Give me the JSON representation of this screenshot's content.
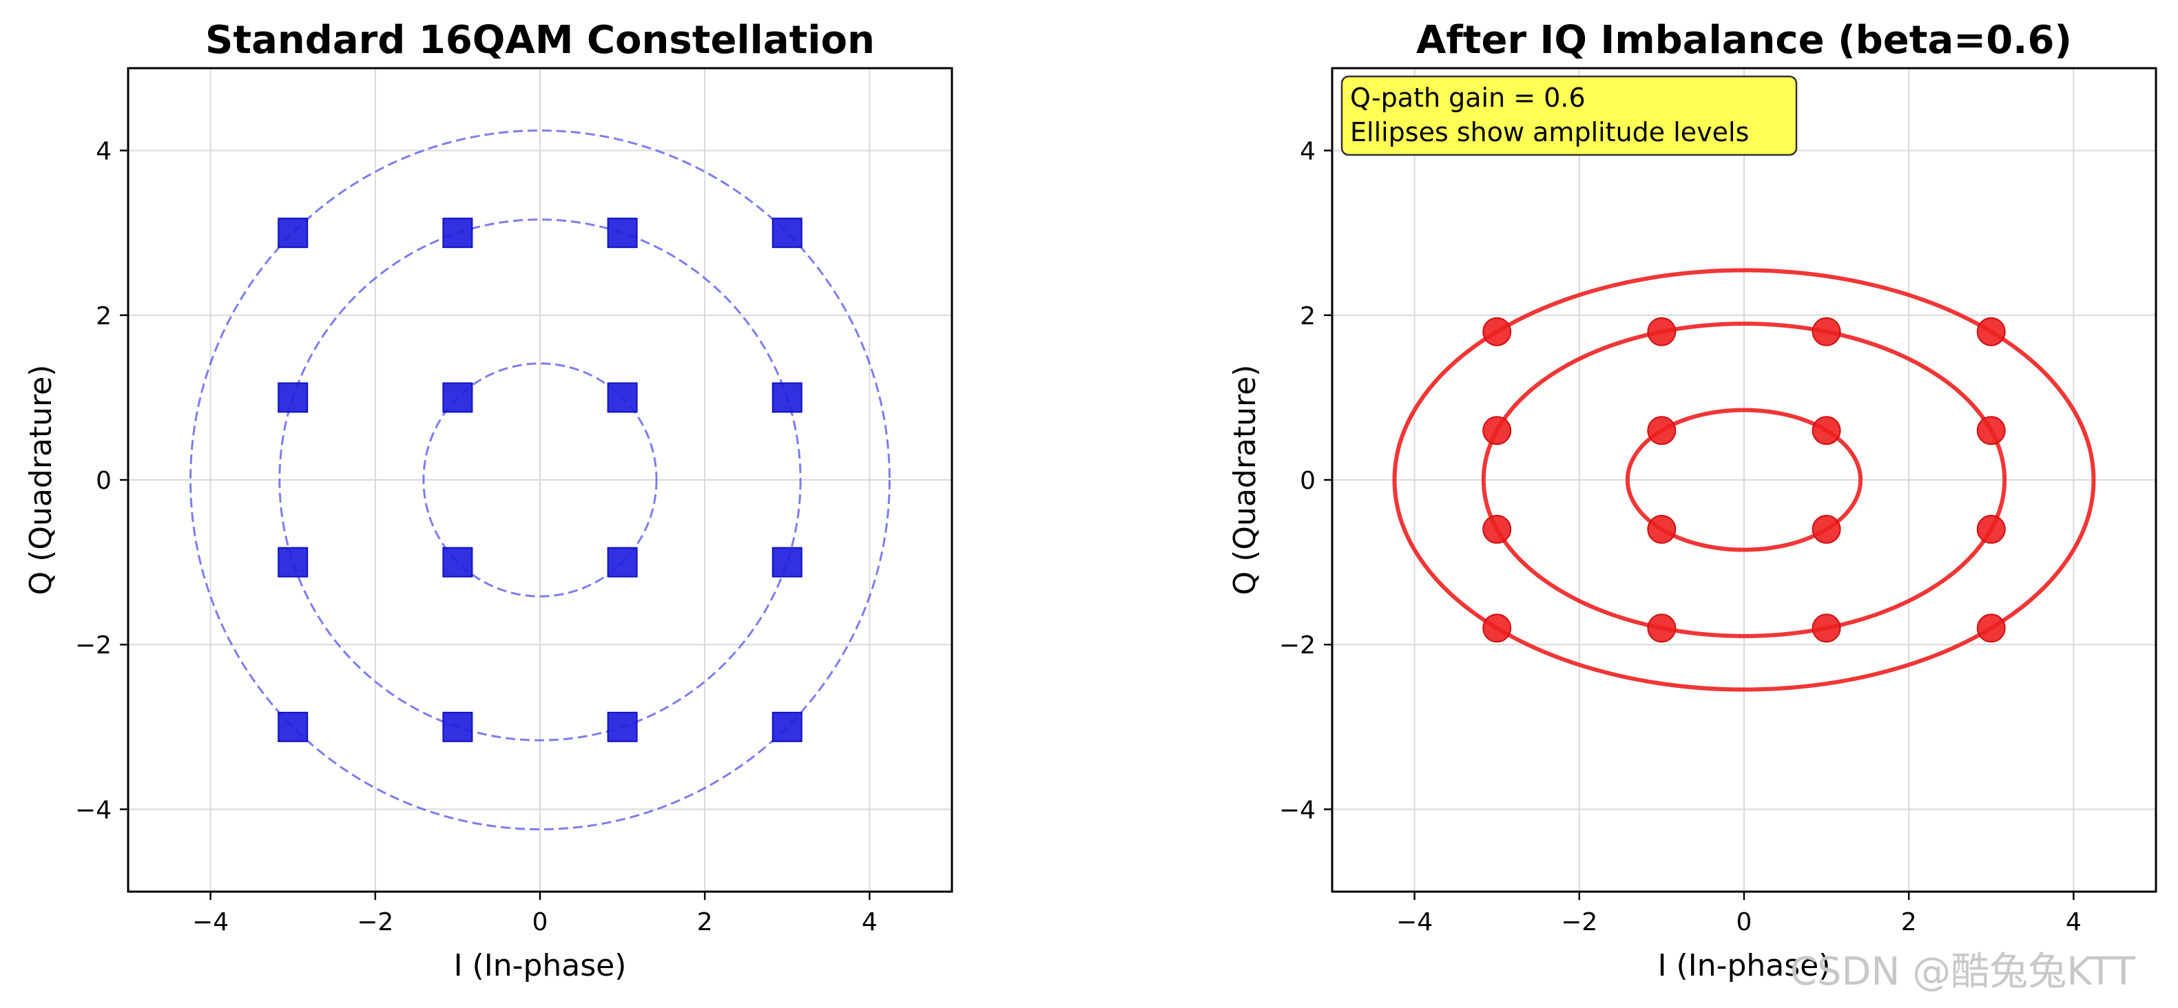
{
  "chart_data": [
    {
      "type": "scatter",
      "title": "Standard 16QAM Constellation",
      "xlabel": "I (In-phase)",
      "ylabel": "Q (Quadrature)",
      "xlim": [
        -5,
        5
      ],
      "ylim": [
        -5,
        5
      ],
      "xticks": [
        -4,
        -2,
        0,
        2,
        4
      ],
      "yticks": [
        -4,
        -2,
        0,
        2,
        4
      ],
      "grid": true,
      "marker": "square",
      "color": "#1f1fe0",
      "points": [
        [
          -3,
          3
        ],
        [
          -1,
          3
        ],
        [
          1,
          3
        ],
        [
          3,
          3
        ],
        [
          -3,
          1
        ],
        [
          -1,
          1
        ],
        [
          1,
          1
        ],
        [
          3,
          1
        ],
        [
          -3,
          -1
        ],
        [
          -1,
          -1
        ],
        [
          1,
          -1
        ],
        [
          3,
          -1
        ],
        [
          -3,
          -3
        ],
        [
          -1,
          -3
        ],
        [
          1,
          -3
        ],
        [
          3,
          -3
        ]
      ],
      "reference_curves": {
        "style": "dashed",
        "color": "#6666ee",
        "ellipses": [
          {
            "rx": 1.414,
            "ry": 1.414
          },
          {
            "rx": 3.162,
            "ry": 3.162
          },
          {
            "rx": 4.243,
            "ry": 4.243
          }
        ]
      }
    },
    {
      "type": "scatter",
      "title": "After IQ Imbalance (beta=0.6)",
      "xlabel": "I (In-phase)",
      "ylabel": "Q (Quadrature)",
      "xlim": [
        -5,
        5
      ],
      "ylim": [
        -5,
        5
      ],
      "xticks": [
        -4,
        -2,
        0,
        2,
        4
      ],
      "yticks": [
        -4,
        -2,
        0,
        2,
        4
      ],
      "grid": true,
      "marker": "circle",
      "color": "#ee2020",
      "points": [
        [
          -3,
          1.8
        ],
        [
          -1,
          1.8
        ],
        [
          1,
          1.8
        ],
        [
          3,
          1.8
        ],
        [
          -3,
          0.6
        ],
        [
          -1,
          0.6
        ],
        [
          1,
          0.6
        ],
        [
          3,
          0.6
        ],
        [
          -3,
          -0.6
        ],
        [
          -1,
          -0.6
        ],
        [
          1,
          -0.6
        ],
        [
          3,
          -0.6
        ],
        [
          -3,
          -1.8
        ],
        [
          -1,
          -1.8
        ],
        [
          1,
          -1.8
        ],
        [
          3,
          -1.8
        ]
      ],
      "reference_curves": {
        "style": "solid",
        "color": "#ee2020",
        "ellipses": [
          {
            "rx": 1.414,
            "ry": 0.849
          },
          {
            "rx": 3.162,
            "ry": 1.897
          },
          {
            "rx": 4.243,
            "ry": 2.546
          }
        ]
      },
      "annotation": {
        "lines": [
          "Q-path gain = 0.6",
          "Ellipses show amplitude levels"
        ],
        "background": "#ffff44",
        "placement": "top-left"
      }
    }
  ],
  "watermark": "CSDN @酷兔兔KTT"
}
